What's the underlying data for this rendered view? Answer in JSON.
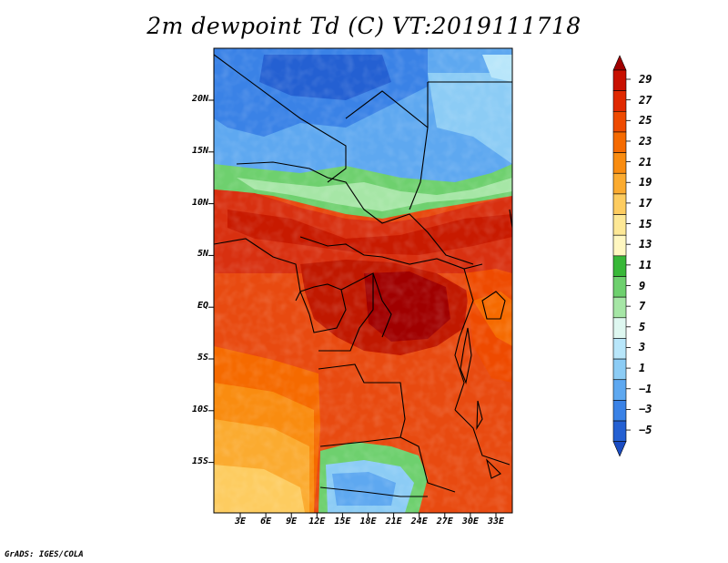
{
  "title": "2m dewpoint Td (C) VT:2019111718",
  "credit": "GrADS: IGES/COLA",
  "y_axis_labels": [
    "20N",
    "15N",
    "10N",
    "5N",
    "EQ",
    "5S",
    "10S",
    "15S"
  ],
  "x_axis_labels": [
    "3E",
    "6E",
    "9E",
    "12E",
    "15E",
    "18E",
    "21E",
    "24E",
    "27E",
    "30E",
    "33E"
  ],
  "colorbar": {
    "labels": [
      "29",
      "27",
      "25",
      "23",
      "21",
      "19",
      "17",
      "15",
      "13",
      "11",
      "9",
      "7",
      "5",
      "3",
      "1",
      "-1",
      "-3",
      "-5"
    ],
    "colors": [
      "#a00000",
      "#c81000",
      "#e02800",
      "#ee4a00",
      "#f56a00",
      "#f98c10",
      "#fbab30",
      "#fdcc60",
      "#fde896",
      "#fff7c0",
      "#38b838",
      "#6ed06e",
      "#a6e6a6",
      "#def7f0",
      "#b8e6fa",
      "#8cccf5",
      "#5ea8f0",
      "#3a82e6",
      "#2460d2",
      "#1a4cc2"
    ]
  }
}
